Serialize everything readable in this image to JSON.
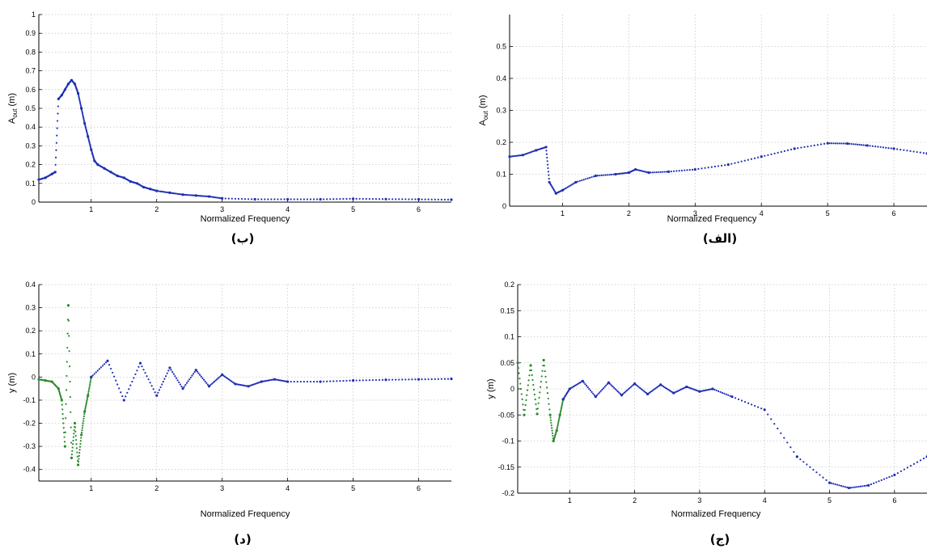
{
  "chart_data": [
    {
      "panel": "top-left",
      "caption": "(ب)",
      "type": "scatter",
      "xlabel": "Normalized Frequency",
      "ylabel": "A_out (m)",
      "ylabel_main": "A",
      "ylabel_sub": "out",
      "ylabel_tail": " (m)",
      "xlim": [
        0.2,
        6.5
      ],
      "ylim": [
        0,
        1
      ],
      "xticks": [
        "1",
        "2",
        "3",
        "4",
        "5",
        "6"
      ],
      "yticks": [
        "0",
        "0.1",
        "0.2",
        "0.3",
        "0.4",
        "0.5",
        "0.6",
        "0.7",
        "0.8",
        "0.9",
        "1"
      ],
      "grid": true,
      "series": [
        {
          "color": "#1f2fb5",
          "x": [
            0.2,
            0.3,
            0.4,
            0.45,
            0.5,
            0.55,
            0.6,
            0.65,
            0.7,
            0.75,
            0.8,
            0.85,
            0.9,
            0.95,
            1.0,
            1.05,
            1.1,
            1.2,
            1.3,
            1.4,
            1.5,
            1.6,
            1.7,
            1.8,
            1.9,
            2.0,
            2.2,
            2.4,
            2.6,
            2.8,
            3.0,
            3.5,
            4.0,
            4.5,
            5.0,
            5.5,
            6.0,
            6.5
          ],
          "y": [
            0.12,
            0.13,
            0.15,
            0.16,
            0.55,
            0.57,
            0.6,
            0.63,
            0.65,
            0.63,
            0.58,
            0.5,
            0.42,
            0.35,
            0.28,
            0.22,
            0.2,
            0.18,
            0.16,
            0.14,
            0.13,
            0.11,
            0.1,
            0.08,
            0.07,
            0.06,
            0.05,
            0.04,
            0.035,
            0.03,
            0.02,
            0.015,
            0.015,
            0.015,
            0.018,
            0.016,
            0.015,
            0.013
          ]
        }
      ]
    },
    {
      "panel": "top-right",
      "caption": "(الف)",
      "type": "scatter",
      "xlabel": "Normalized Frequency",
      "ylabel": "A_out (m)",
      "ylabel_main": "A",
      "ylabel_sub": "out",
      "ylabel_tail": " (m)",
      "xlim": [
        0.2,
        6.5
      ],
      "ylim": [
        0,
        0.6
      ],
      "xticks": [
        "1",
        "2",
        "3",
        "4",
        "5",
        "6"
      ],
      "yticks": [
        "0",
        "0.1",
        "0.2",
        "0.3",
        "0.4",
        "0.5"
      ],
      "grid": true,
      "series": [
        {
          "color": "#1f2fb5",
          "x": [
            0.2,
            0.4,
            0.6,
            0.75,
            0.8,
            0.9,
            1.0,
            1.2,
            1.5,
            1.8,
            2.0,
            2.1,
            2.3,
            2.6,
            3.0,
            3.5,
            4.0,
            4.5,
            5.0,
            5.3,
            5.6,
            6.0,
            6.5
          ],
          "y": [
            0.155,
            0.16,
            0.175,
            0.185,
            0.075,
            0.04,
            0.05,
            0.075,
            0.095,
            0.1,
            0.105,
            0.115,
            0.105,
            0.108,
            0.115,
            0.13,
            0.155,
            0.18,
            0.197,
            0.196,
            0.19,
            0.18,
            0.165
          ]
        }
      ]
    },
    {
      "panel": "bottom-left",
      "caption": "(د)",
      "type": "scatter",
      "xlabel": "Normalized Frequency",
      "ylabel": "y (m)",
      "xlim": [
        0.2,
        6.5
      ],
      "ylim": [
        -0.45,
        0.4
      ],
      "xticks": [
        "1",
        "2",
        "3",
        "4",
        "5",
        "6"
      ],
      "yticks": [
        "-0.4",
        "-0.3",
        "-0.2",
        "-0.1",
        "0",
        "0.1",
        "0.2",
        "0.3",
        "0.4"
      ],
      "grid": true,
      "series": [
        {
          "color": "#2a8a2a",
          "x": [
            0.2,
            0.3,
            0.4,
            0.5,
            0.55,
            0.6,
            0.65,
            0.7,
            0.75,
            0.8,
            0.85,
            0.9,
            0.95,
            1.0
          ],
          "y": [
            -0.01,
            -0.015,
            -0.02,
            -0.05,
            -0.1,
            -0.3,
            0.31,
            -0.35,
            -0.2,
            -0.38,
            -0.25,
            -0.15,
            -0.08,
            0.0
          ]
        },
        {
          "color": "#1f2fb5",
          "x": [
            1.0,
            1.25,
            1.5,
            1.75,
            2.0,
            2.2,
            2.4,
            2.6,
            2.8,
            3.0,
            3.2,
            3.4,
            3.6,
            3.8,
            4.0,
            4.5,
            5.0,
            5.5,
            6.0,
            6.5
          ],
          "y": [
            0.0,
            0.07,
            -0.1,
            0.06,
            -0.08,
            0.04,
            -0.05,
            0.03,
            -0.04,
            0.01,
            -0.03,
            -0.04,
            -0.02,
            -0.01,
            -0.02,
            -0.02,
            -0.015,
            -0.012,
            -0.01,
            -0.008
          ]
        }
      ]
    },
    {
      "panel": "bottom-right",
      "caption": "(ج)",
      "type": "scatter",
      "xlabel": "Normalized Frequency",
      "ylabel": "y (m)",
      "xlim": [
        0.2,
        6.5
      ],
      "ylim": [
        -0.2,
        0.2
      ],
      "xticks": [
        "1",
        "2",
        "3",
        "4",
        "5",
        "6"
      ],
      "yticks": [
        "-0.2",
        "-0.15",
        "-0.1",
        "-0.05",
        "0",
        "0.05",
        "0.1",
        "0.15",
        "0.2"
      ],
      "grid": true,
      "series": [
        {
          "color": "#2a8a2a",
          "x": [
            0.2,
            0.3,
            0.4,
            0.5,
            0.6,
            0.7,
            0.75,
            0.8,
            0.85,
            0.9
          ],
          "y": [
            0.05,
            -0.05,
            0.045,
            -0.048,
            0.055,
            -0.05,
            -0.1,
            -0.08,
            -0.05,
            -0.02
          ]
        },
        {
          "color": "#1f2fb5",
          "x": [
            0.9,
            1.0,
            1.2,
            1.4,
            1.6,
            1.8,
            2.0,
            2.2,
            2.4,
            2.6,
            2.8,
            3.0,
            3.2,
            3.5,
            4.0,
            4.5,
            5.0,
            5.3,
            5.6,
            6.0,
            6.5
          ],
          "y": [
            -0.02,
            0.0,
            0.015,
            -0.015,
            0.012,
            -0.012,
            0.01,
            -0.01,
            0.008,
            -0.008,
            0.004,
            -0.005,
            0.0,
            -0.015,
            -0.04,
            -0.13,
            -0.18,
            -0.19,
            -0.185,
            -0.165,
            -0.13
          ]
        }
      ]
    }
  ]
}
